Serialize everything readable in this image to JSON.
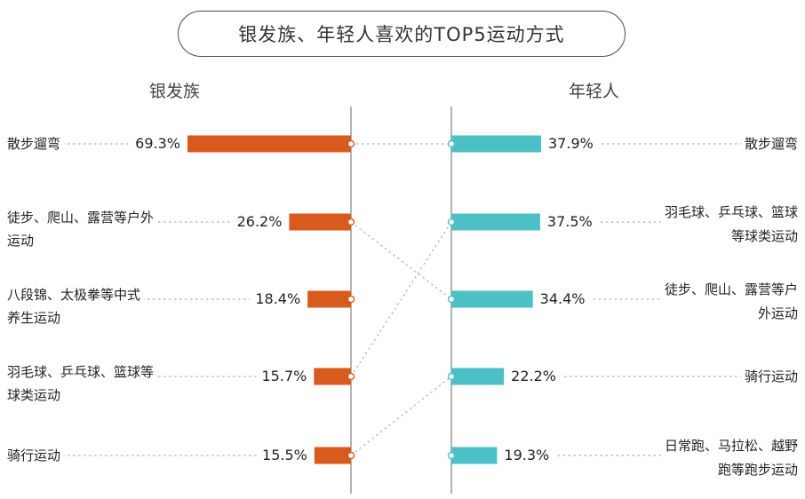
{
  "title": "银发族、年轻人喜欢的TOP5运动方式",
  "chart_data": {
    "type": "bar",
    "colors": {
      "left": "#d85a1c",
      "right": "#4cbfc7",
      "connector": "#b0b0b0",
      "axis": "#8a8a8a"
    },
    "groups": [
      {
        "name": "银发族",
        "side": "left",
        "categories": [
          [
            "散步遛弯"
          ],
          [
            "徒步、爬山、露营等户外",
            "运动"
          ],
          [
            "八段锦、太极拳等中式",
            "养生运动"
          ],
          [
            "羽毛球、乒乓球、篮球等",
            "球类运动"
          ],
          [
            "骑行运动"
          ]
        ],
        "values": [
          69.3,
          26.2,
          18.4,
          15.7,
          15.5
        ],
        "value_labels": [
          "69.3%",
          "26.2%",
          "18.4%",
          "15.7%",
          "15.5%"
        ]
      },
      {
        "name": "年轻人",
        "side": "right",
        "categories": [
          [
            "散步遛弯"
          ],
          [
            "羽毛球、乒乓球、篮球",
            "等球类运动"
          ],
          [
            "徒步、爬山、露营等户",
            "外运动"
          ],
          [
            "骑行运动"
          ],
          [
            "日常跑、马拉松、越野",
            "跑等跑步运动"
          ]
        ],
        "values": [
          37.9,
          37.5,
          34.4,
          22.2,
          19.3
        ],
        "value_labels": [
          "37.9%",
          "37.5%",
          "34.4%",
          "22.2%",
          "19.3%"
        ]
      }
    ],
    "links": [
      [
        0,
        0
      ],
      [
        1,
        2
      ],
      [
        3,
        1
      ],
      [
        4,
        3
      ]
    ]
  }
}
